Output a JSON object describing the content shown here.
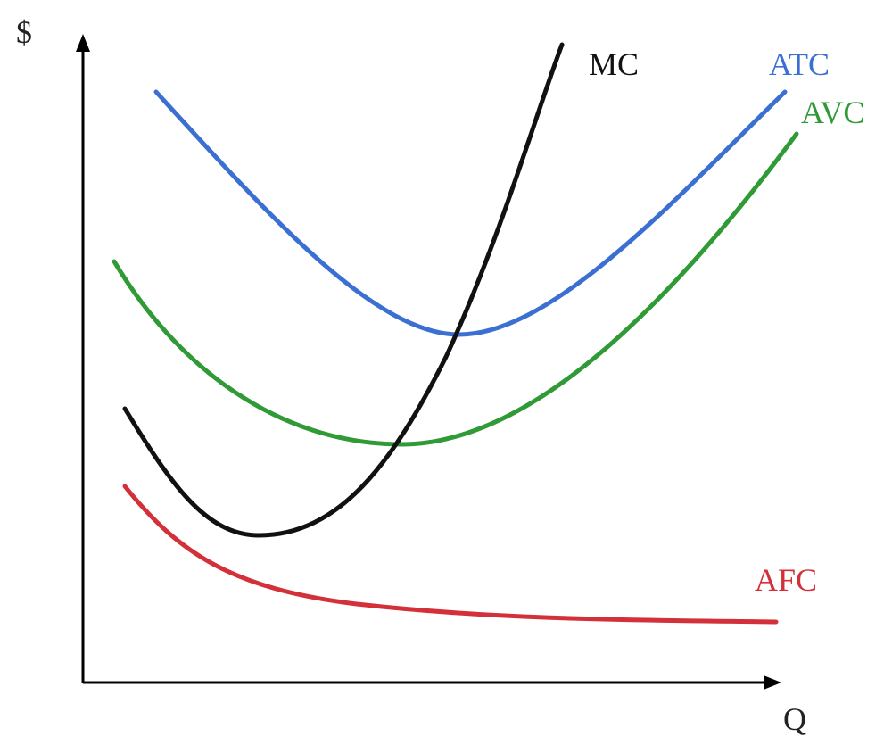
{
  "axes": {
    "y_label": "$",
    "x_label": "Q"
  },
  "curves": [
    {
      "label": "MC"
    },
    {
      "label": "ATC"
    },
    {
      "label": "AVC"
    },
    {
      "label": "AFC"
    }
  ]
}
